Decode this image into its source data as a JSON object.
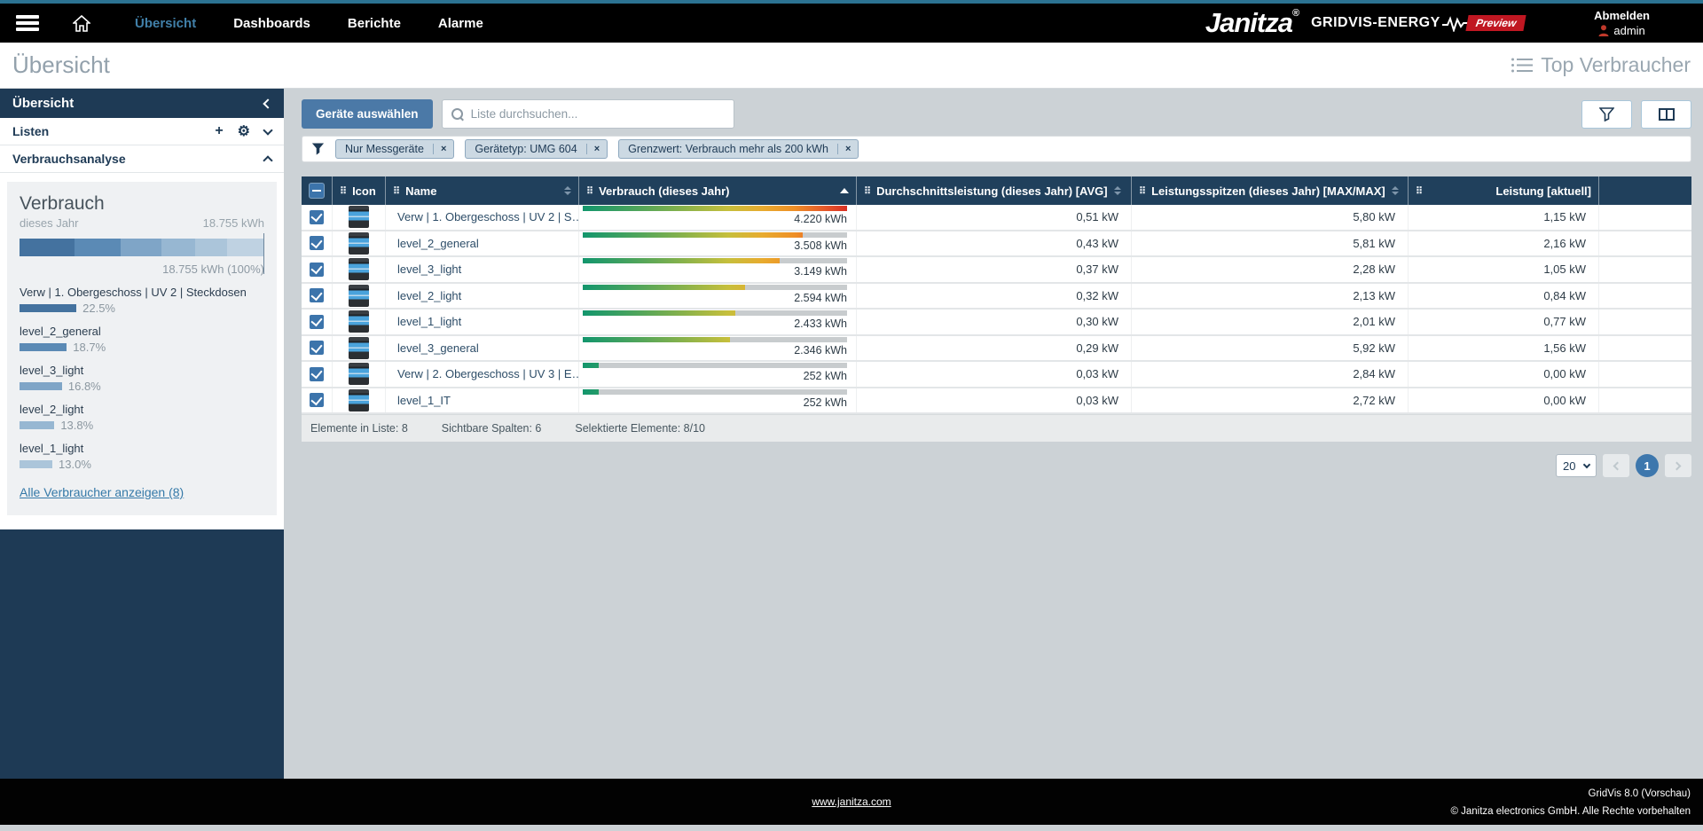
{
  "icons": {
    "drag_handle": "⠿",
    "close": "×",
    "plus": "+",
    "gear": "⚙",
    "register": "®"
  },
  "nav": {
    "items": [
      {
        "label": "Übersicht",
        "active": true
      },
      {
        "label": "Dashboards",
        "active": false
      },
      {
        "label": "Berichte",
        "active": false
      },
      {
        "label": "Alarme",
        "active": false
      }
    ],
    "brand": "Janitza",
    "product": "GRIDVIS-ENERGY",
    "preview_badge": "Preview",
    "logout": "Abmelden",
    "user": "admin"
  },
  "title_bar": {
    "title": "Übersicht",
    "right_label": "Top Verbraucher"
  },
  "sidebar": {
    "header": "Übersicht",
    "rows": [
      {
        "label": "Listen"
      },
      {
        "label": "Verbrauchsanalyse"
      }
    ],
    "widget": {
      "title": "Verbrauch",
      "subtitle": "dieses Jahr",
      "total": "18.755 kWh",
      "total_pct": "18.755 kWh (100%)",
      "remainder_color": "#bfd2e2",
      "segments": [
        {
          "pct": 22.5,
          "color": "#44729f"
        },
        {
          "pct": 18.7,
          "color": "#5b8ab5"
        },
        {
          "pct": 16.8,
          "color": "#7fa5c7"
        },
        {
          "pct": 13.8,
          "color": "#97b7d2"
        },
        {
          "pct": 13.0,
          "color": "#abc5da"
        }
      ],
      "consumers": [
        {
          "name": "Verw | 1. Obergeschoss | UV 2 | Steckdosen",
          "pct": 22.5,
          "pct_label": "22.5%",
          "color": "#44729f"
        },
        {
          "name": "level_2_general",
          "pct": 18.7,
          "pct_label": "18.7%",
          "color": "#5b8ab5"
        },
        {
          "name": "level_3_light",
          "pct": 16.8,
          "pct_label": "16.8%",
          "color": "#7fa5c7"
        },
        {
          "name": "level_2_light",
          "pct": 13.8,
          "pct_label": "13.8%",
          "color": "#97b7d2"
        },
        {
          "name": "level_1_light",
          "pct": 13.0,
          "pct_label": "13.0%",
          "color": "#abc5da"
        }
      ],
      "show_all_link": "Alle Verbraucher anzeigen (8)"
    }
  },
  "toolbar": {
    "select_devices": "Geräte auswählen",
    "search_placeholder": "Liste durchsuchen..."
  },
  "filters": {
    "chips": [
      {
        "label": "Nur Messgeräte"
      },
      {
        "label": "Gerätetyp: UMG 604"
      },
      {
        "label": "Grenzwert: Verbrauch mehr als 200 kWh"
      }
    ]
  },
  "table": {
    "columns": {
      "icon": "Icon",
      "name": "Name",
      "verbrauch": "Verbrauch  (dieses Jahr)",
      "avg": "Durchschnittsleistung  (dieses Jahr)  [AVG]",
      "max": "Leistungsspitzen  (dieses Jahr)  [MAX/MAX]",
      "current": "Leistung [aktuell]"
    },
    "rows": [
      {
        "name": "Verw | 1. Obergeschoss | UV 2 | S…",
        "verbrauch": "4.220 kWh",
        "fill_pct": 100,
        "avg": "0,51 kW",
        "max": "5,80 kW",
        "current": "1,15 kW"
      },
      {
        "name": "level_2_general",
        "verbrauch": "3.508 kWh",
        "fill_pct": 83.1,
        "avg": "0,43 kW",
        "max": "5,81 kW",
        "current": "2,16 kW"
      },
      {
        "name": "level_3_light",
        "verbrauch": "3.149 kWh",
        "fill_pct": 74.6,
        "avg": "0,37 kW",
        "max": "2,28 kW",
        "current": "1,05 kW"
      },
      {
        "name": "level_2_light",
        "verbrauch": "2.594 kWh",
        "fill_pct": 61.5,
        "avg": "0,32 kW",
        "max": "2,13 kW",
        "current": "0,84 kW"
      },
      {
        "name": "level_1_light",
        "verbrauch": "2.433 kWh",
        "fill_pct": 57.7,
        "avg": "0,30 kW",
        "max": "2,01 kW",
        "current": "0,77 kW"
      },
      {
        "name": "level_3_general",
        "verbrauch": "2.346 kWh",
        "fill_pct": 55.6,
        "avg": "0,29 kW",
        "max": "5,92 kW",
        "current": "1,56 kW"
      },
      {
        "name": "Verw | 2. Obergeschoss | UV 3 | E…",
        "verbrauch": "252 kWh",
        "fill_pct": 6.0,
        "avg": "0,03 kW",
        "max": "2,84 kW",
        "current": "0,00 kW"
      },
      {
        "name": "level_1_IT",
        "verbrauch": "252 kWh",
        "fill_pct": 6.0,
        "avg": "0,03 kW",
        "max": "2,72 kW",
        "current": "0,00 kW"
      }
    ],
    "summary": {
      "elements": "Elemente in Liste: 8",
      "visible_columns": "Sichtbare Spalten: 6",
      "selected": "Selektierte Elemente: 8/10"
    }
  },
  "pagination": {
    "page_size": "20",
    "current_page": "1"
  },
  "footer": {
    "link": "www.janitza.com",
    "version": "GridVis 8.0 (Vorschau)",
    "copyright": "© Janitza electronics GmbH. Alle Rechte vorbehalten"
  }
}
